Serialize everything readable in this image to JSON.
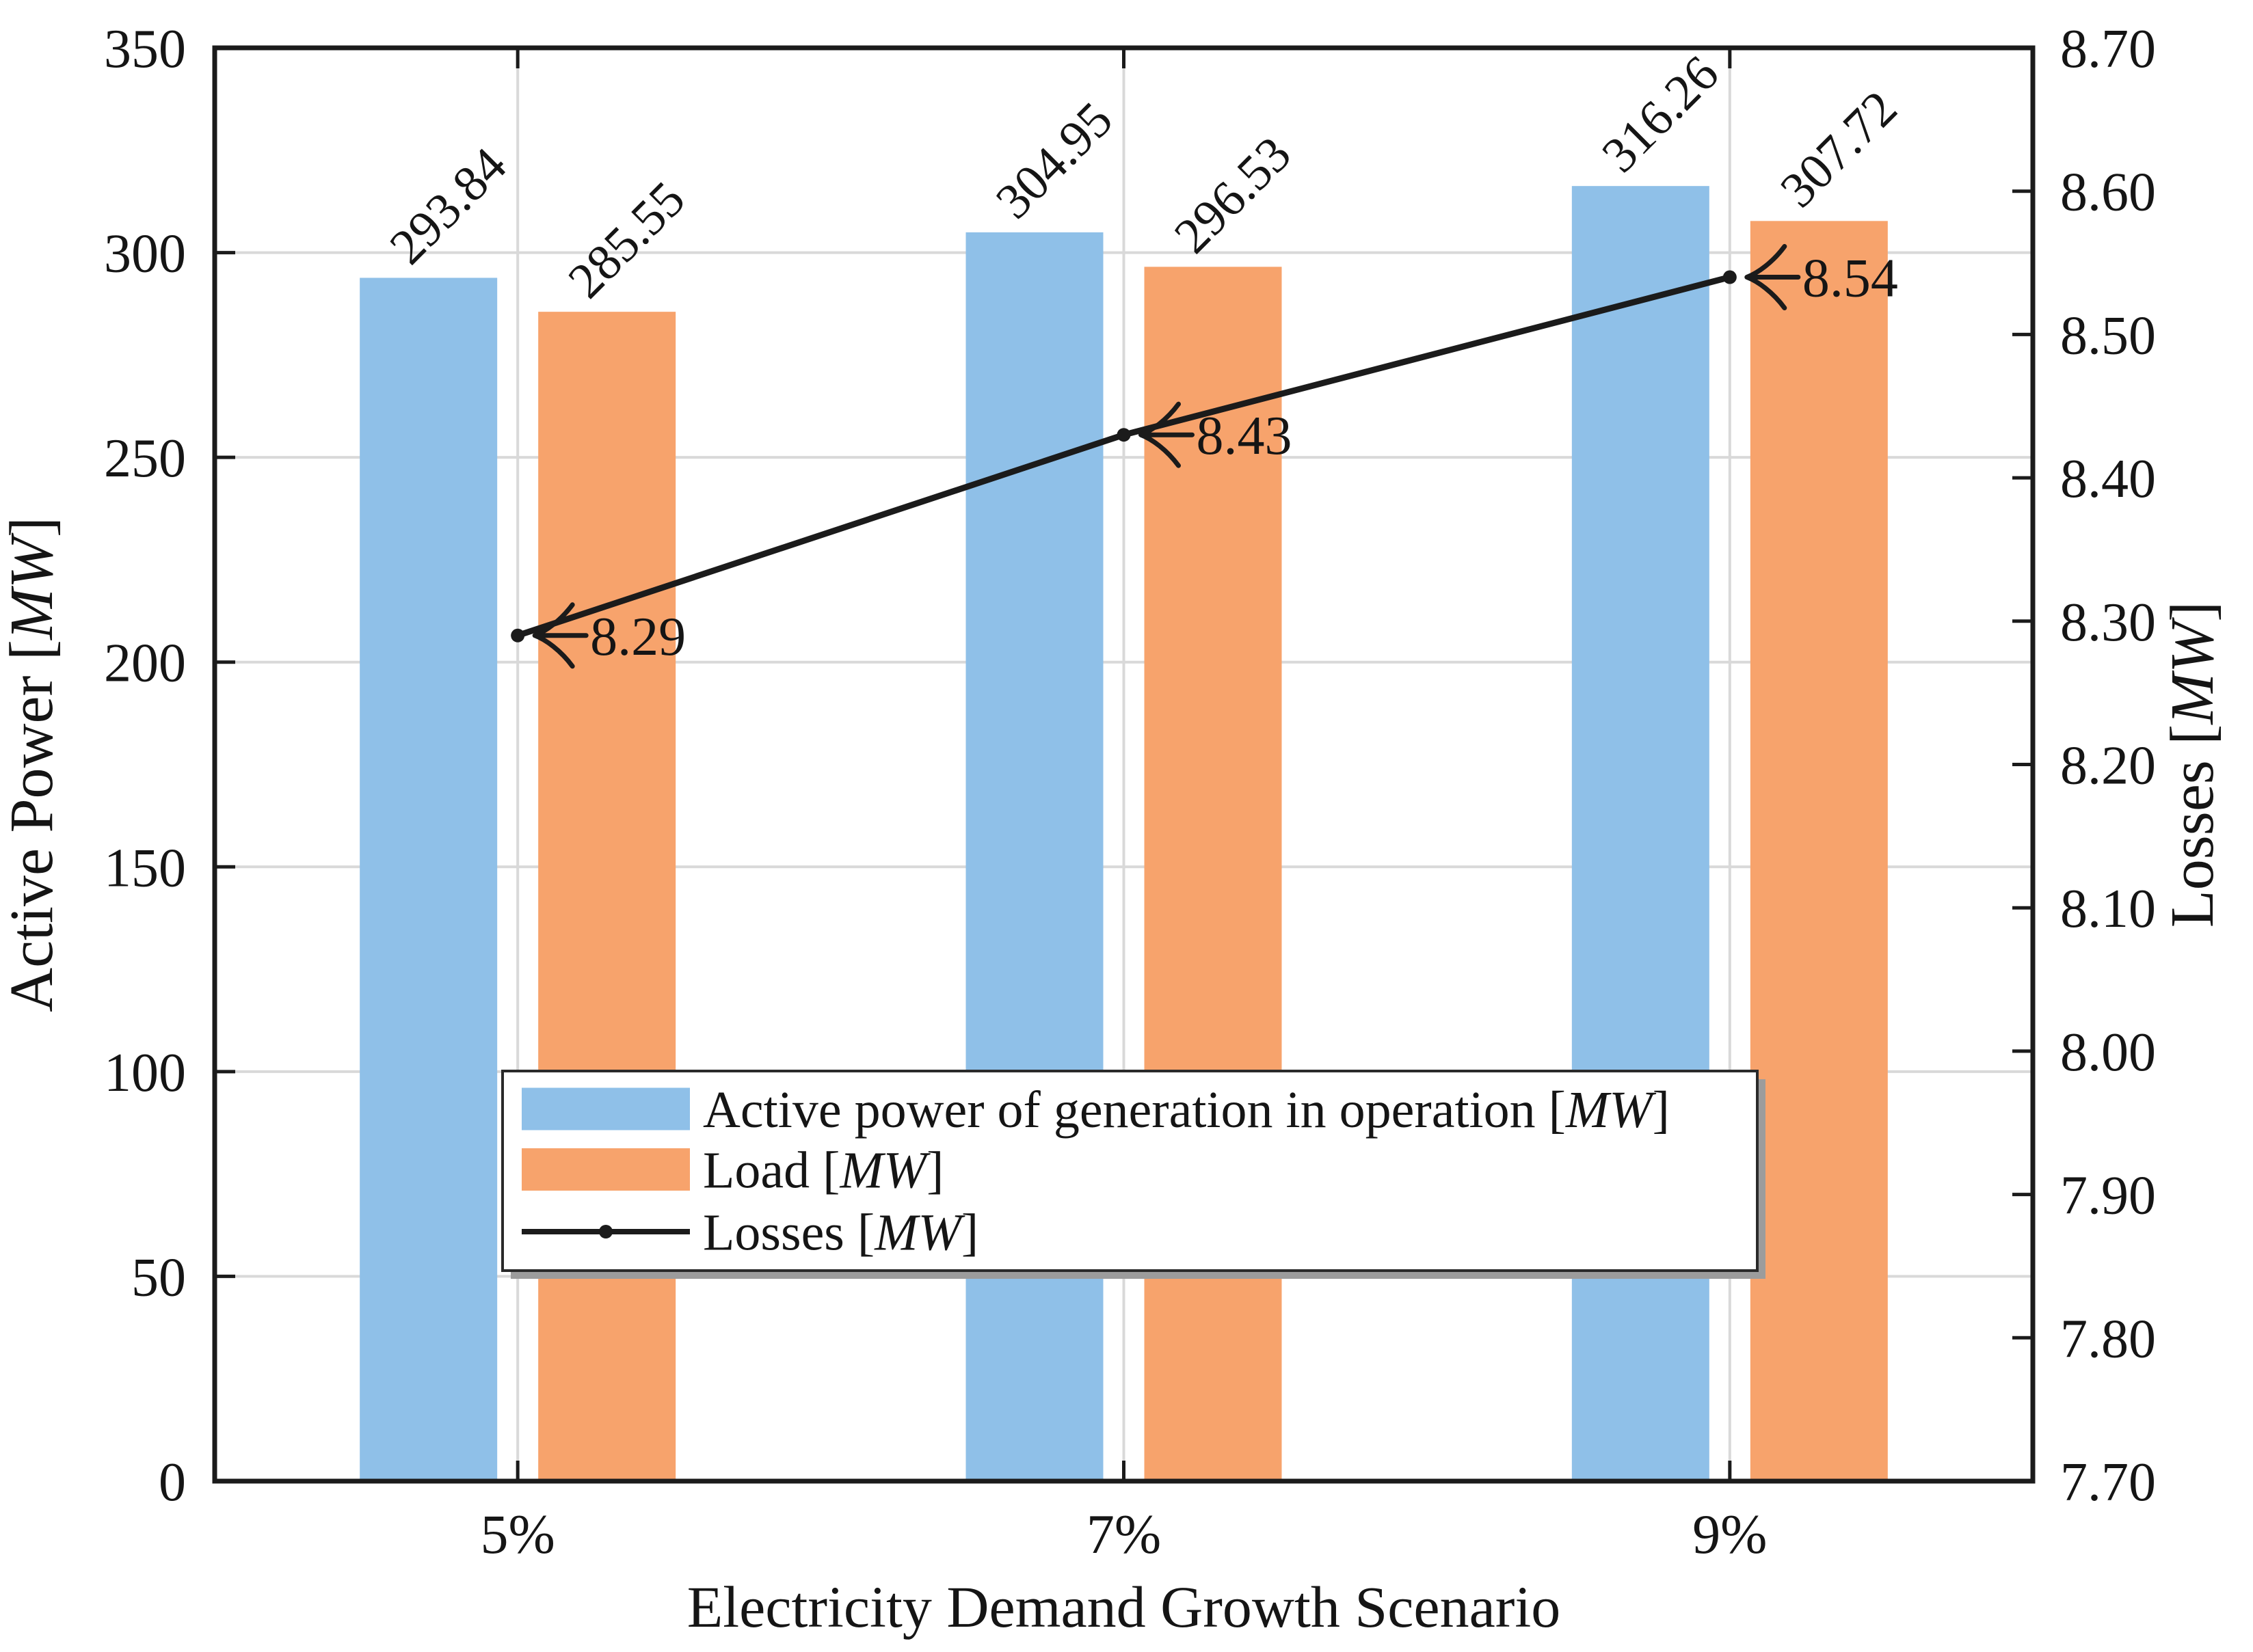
{
  "chart_data": {
    "type": "bar+line",
    "title": "",
    "categories": [
      "5%",
      "7%",
      "9%"
    ],
    "xlabel": "Electricity Demand Growth Scenario",
    "left_axis": {
      "label": "Active Power [MW]",
      "min": 0,
      "max": 350,
      "tick_step": 50,
      "ticks": [
        "0",
        "50",
        "100",
        "150",
        "200",
        "250",
        "300",
        "350"
      ]
    },
    "right_axis": {
      "label": "Losses [MW]",
      "min": 7.7,
      "max": 8.7,
      "tick_step": 0.1,
      "ticks": [
        "7.70",
        "7.80",
        "7.90",
        "8.00",
        "8.10",
        "8.20",
        "8.30",
        "8.40",
        "8.50",
        "8.60",
        "8.70"
      ]
    },
    "series": [
      {
        "name": "Active power of generation in operation [MW]",
        "type": "bar",
        "axis": "left",
        "color": "#8FC0E8",
        "values": [
          293.84,
          304.95,
          316.26
        ],
        "value_labels": [
          "293.84",
          "304.95",
          "316.26"
        ]
      },
      {
        "name": "Load [MW]",
        "type": "bar",
        "axis": "left",
        "color": "#F7A36C",
        "values": [
          285.55,
          296.53,
          307.72
        ],
        "value_labels": [
          "285.55",
          "296.53",
          "307.72"
        ]
      },
      {
        "name": "Losses [MW]",
        "type": "line",
        "axis": "right",
        "color": "#1B1B1B",
        "values": [
          8.29,
          8.43,
          8.54
        ],
        "point_labels": [
          "8.29",
          "8.43",
          "8.54"
        ],
        "point_label_style": "left-arrow"
      }
    ],
    "legend": {
      "position": "lower-center-inside",
      "entries": [
        "Active power of generation in operation [MW]",
        "Load [MW]",
        "Losses [MW]"
      ]
    },
    "grid": {
      "horizontal": true,
      "vertical": true
    },
    "colors": {
      "background": "#FFFFFF",
      "grid": "#D9D9D9",
      "spine": "#1B1B1B",
      "text": "#151515",
      "legend_border": "#2A2A2A",
      "legend_shadow": "#9C9C9C"
    }
  }
}
